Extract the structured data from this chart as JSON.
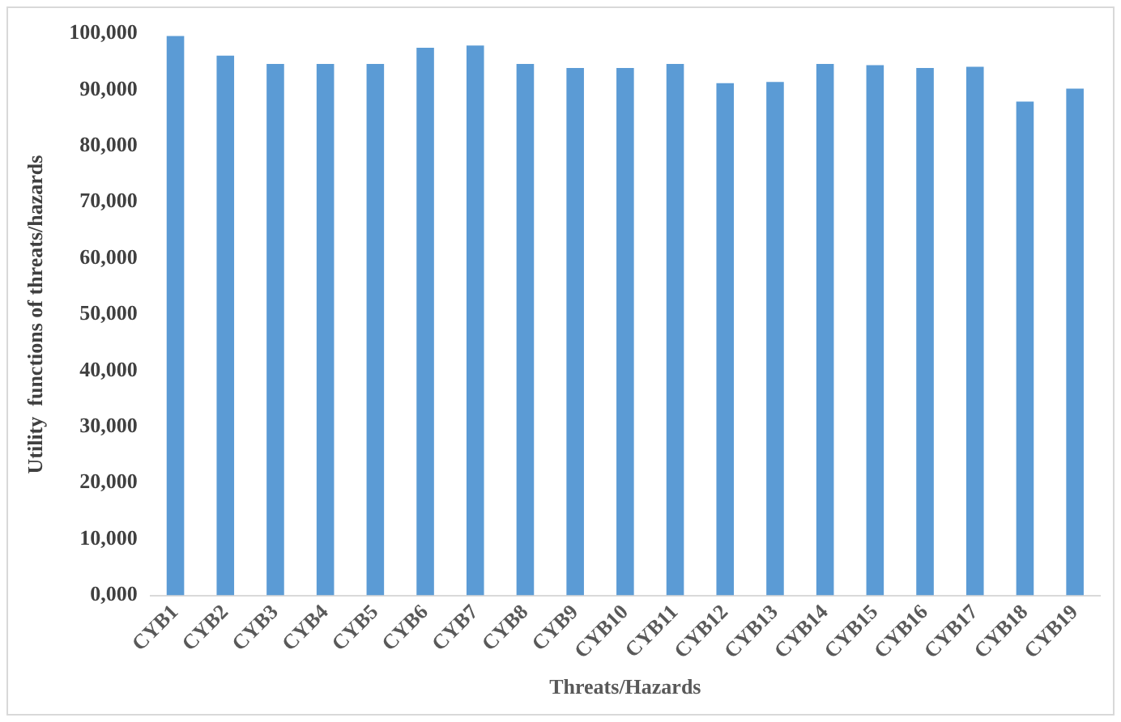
{
  "chart_data": {
    "type": "bar",
    "xlabel": "Threats/Hazards",
    "ylabel": "Utility  functions of threats/hazards",
    "categories": [
      "CYB1",
      "CYB2",
      "CYB3",
      "CYB4",
      "CYB5",
      "CYB6",
      "CYB7",
      "CYB8",
      "CYB9",
      "CYB10",
      "CYB11",
      "CYB12",
      "CYB13",
      "CYB14",
      "CYB15",
      "CYB16",
      "CYB17",
      "CYB18",
      "CYB19"
    ],
    "values": [
      99600,
      96100,
      94600,
      94600,
      94600,
      97500,
      97900,
      94600,
      93900,
      93900,
      94600,
      91200,
      91400,
      94600,
      94400,
      93900,
      94100,
      87900,
      90200
    ],
    "color": "#5b9bd5",
    "ylim": [
      0,
      100000
    ],
    "yticks": [
      {
        "value": 0,
        "label": "0,000"
      },
      {
        "value": 10000,
        "label": "10,000"
      },
      {
        "value": 20000,
        "label": "20,000"
      },
      {
        "value": 30000,
        "label": "30,000"
      },
      {
        "value": 40000,
        "label": "40,000"
      },
      {
        "value": 50000,
        "label": "50,000"
      },
      {
        "value": 60000,
        "label": "60,000"
      },
      {
        "value": 70000,
        "label": "70,000"
      },
      {
        "value": 80000,
        "label": "80,000"
      },
      {
        "value": 90000,
        "label": "90,000"
      },
      {
        "value": 100000,
        "label": "100,000"
      }
    ],
    "grid": false,
    "legend": false
  }
}
